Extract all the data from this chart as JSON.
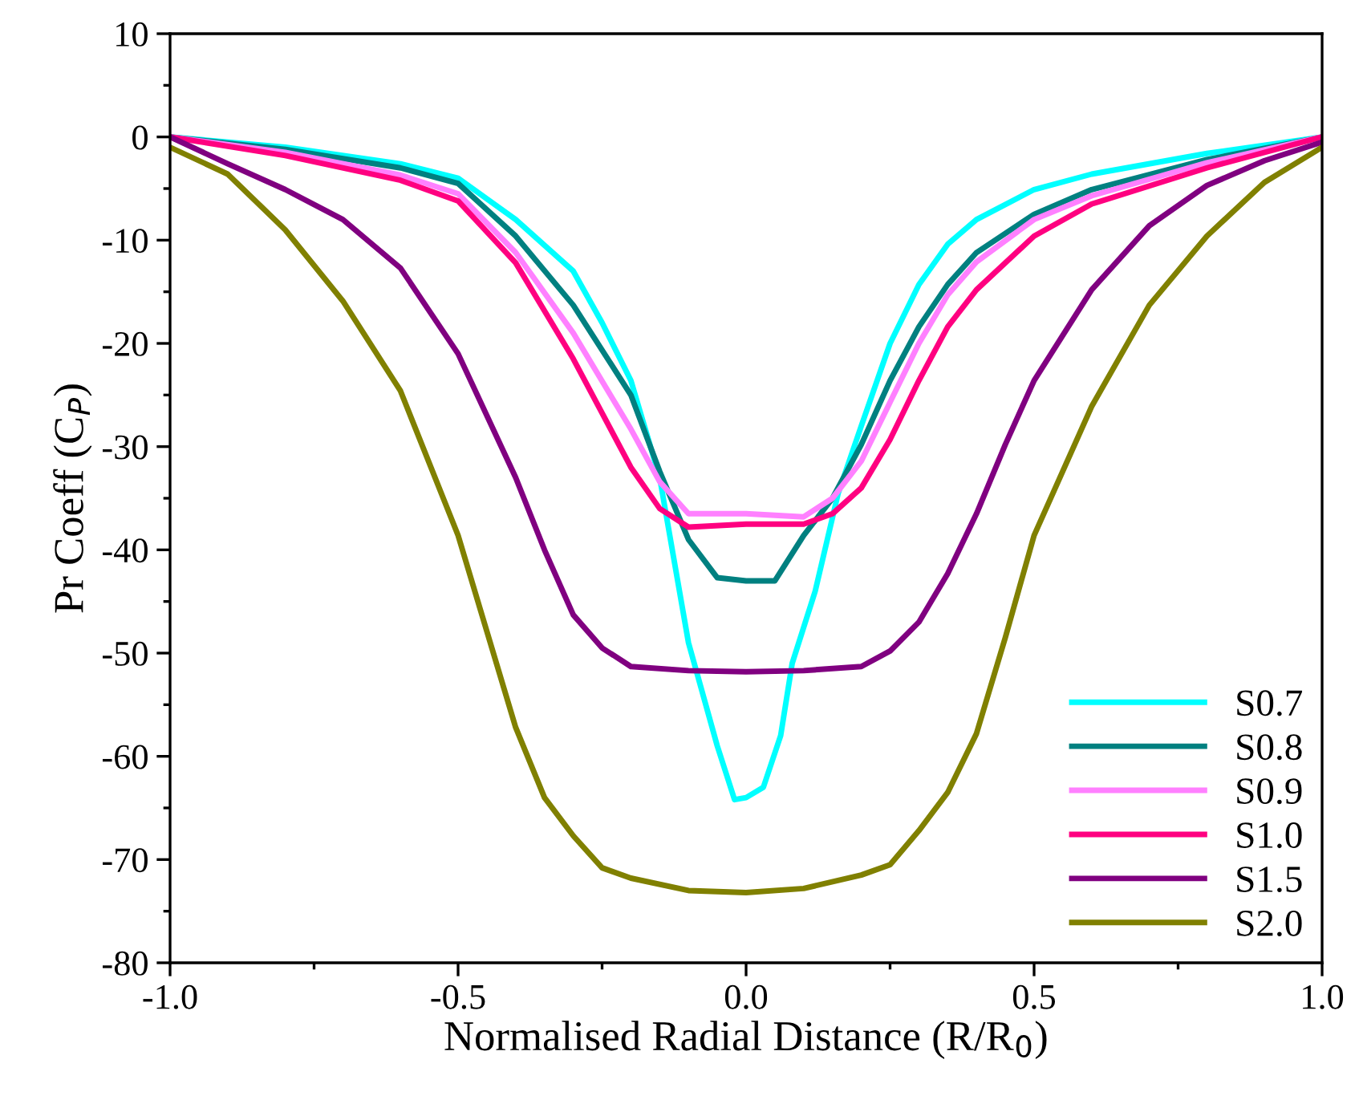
{
  "chart_data": {
    "type": "line",
    "xlabel": "Normalised Radial Distance (R/R$_{0}$)",
    "ylabel": "Pr Coeff (C$_{P}$)",
    "xlim": [
      -1,
      1
    ],
    "ylim": [
      -80,
      10
    ],
    "xticks": [
      {
        "value": -1,
        "label": "-1.0"
      },
      {
        "value": -0.75,
        "label": null
      },
      {
        "value": -0.5,
        "label": "-0.5"
      },
      {
        "value": -0.25,
        "label": null
      },
      {
        "value": 0,
        "label": "0.0"
      },
      {
        "value": 0.25,
        "label": null
      },
      {
        "value": 0.5,
        "label": "0.5"
      },
      {
        "value": 0.75,
        "label": null
      },
      {
        "value": 1,
        "label": "1.0"
      }
    ],
    "yticks": [
      -80,
      {
        "value": -75,
        "label": null
      },
      -70,
      {
        "value": -65,
        "label": null
      },
      -60,
      {
        "value": -55,
        "label": null
      },
      -50,
      {
        "value": -45,
        "label": null
      },
      -40,
      {
        "value": -35,
        "label": null
      },
      -30,
      {
        "value": -25,
        "label": null
      },
      -20,
      {
        "value": -15,
        "label": null
      },
      -10,
      {
        "value": -5,
        "label": null
      },
      0,
      {
        "value": 5,
        "label": null
      },
      10
    ],
    "grid": false,
    "legend": "bottom right",
    "line_style": "solid",
    "marker": "none",
    "series": [
      {
        "name": "S0.7",
        "color": "#00ffff",
        "x": [
          -1,
          -0.8,
          -0.6,
          -0.5,
          -0.4,
          -0.3,
          -0.25,
          -0.2,
          -0.15,
          -0.1,
          -0.05,
          -0.02,
          0,
          0.03,
          0.06,
          0.08,
          0.12,
          0.16,
          0.2,
          0.25,
          0.3,
          0.35,
          0.4,
          0.5,
          0.6,
          0.8,
          1
        ],
        "values": [
          0,
          -1,
          -2.6,
          -4,
          -8,
          -13,
          -18,
          -23.6,
          -33,
          -49,
          -59,
          -64.2,
          -64,
          -63,
          -58,
          -51,
          -44,
          -34.5,
          -28,
          -20,
          -14.3,
          -10.4,
          -8,
          -5.1,
          -3.6,
          -1.6,
          0
        ]
      },
      {
        "name": "S0.8",
        "color": "#008080",
        "x": [
          -1,
          -0.8,
          -0.6,
          -0.5,
          -0.4,
          -0.3,
          -0.2,
          -0.15,
          -0.1,
          -0.05,
          0,
          0.05,
          0.1,
          0.15,
          0.2,
          0.25,
          0.3,
          0.35,
          0.4,
          0.5,
          0.6,
          0.8,
          1
        ],
        "values": [
          0,
          -1.2,
          -3,
          -4.5,
          -9.6,
          -16.3,
          -25,
          -32.4,
          -39,
          -42.7,
          -43,
          -43,
          -38.6,
          -35,
          -29.8,
          -23.6,
          -18.4,
          -14.3,
          -11.2,
          -7.5,
          -5.1,
          -2.2,
          0
        ]
      },
      {
        "name": "S0.9",
        "color": "#ff80ff",
        "x": [
          -1,
          -0.8,
          -0.6,
          -0.5,
          -0.4,
          -0.3,
          -0.2,
          -0.15,
          -0.1,
          0,
          0.1,
          0.15,
          0.2,
          0.25,
          0.3,
          0.35,
          0.4,
          0.5,
          0.6,
          0.8,
          1
        ],
        "values": [
          0,
          -1.5,
          -3.7,
          -5.5,
          -11.2,
          -19,
          -28.3,
          -33.4,
          -36.5,
          -36.5,
          -36.8,
          -35,
          -31.4,
          -25.7,
          -20,
          -15.3,
          -12.1,
          -8,
          -5.7,
          -2.5,
          0
        ]
      },
      {
        "name": "S1.0",
        "color": "#ff0080",
        "x": [
          -1,
          -0.8,
          -0.6,
          -0.5,
          -0.4,
          -0.3,
          -0.2,
          -0.15,
          -0.1,
          0,
          0.1,
          0.15,
          0.2,
          0.25,
          0.3,
          0.35,
          0.4,
          0.5,
          0.6,
          0.8,
          1
        ],
        "values": [
          0,
          -1.8,
          -4.2,
          -6.2,
          -12.2,
          -21.5,
          -32,
          -36,
          -37.8,
          -37.5,
          -37.5,
          -36.5,
          -34,
          -29.3,
          -23.6,
          -18.4,
          -14.8,
          -9.6,
          -6.5,
          -3,
          0
        ]
      },
      {
        "name": "S1.5",
        "color": "#800080",
        "x": [
          -1,
          -0.9,
          -0.8,
          -0.7,
          -0.6,
          -0.5,
          -0.4,
          -0.35,
          -0.3,
          -0.25,
          -0.2,
          -0.1,
          0,
          0.1,
          0.2,
          0.25,
          0.3,
          0.35,
          0.4,
          0.45,
          0.5,
          0.6,
          0.7,
          0.8,
          0.9,
          1
        ],
        "values": [
          0,
          -2.6,
          -5.1,
          -8,
          -12.7,
          -21,
          -33,
          -40,
          -46.3,
          -49.5,
          -51.3,
          -51.7,
          -51.8,
          -51.7,
          -51.3,
          -49.8,
          -47,
          -42.3,
          -36.5,
          -29.8,
          -23.6,
          -14.8,
          -8.6,
          -4.7,
          -2.3,
          -0.5
        ]
      },
      {
        "name": "S2.0",
        "color": "#808000",
        "x": [
          -1,
          -0.9,
          -0.8,
          -0.7,
          -0.6,
          -0.5,
          -0.45,
          -0.4,
          -0.35,
          -0.3,
          -0.25,
          -0.2,
          -0.1,
          0,
          0.1,
          0.2,
          0.25,
          0.3,
          0.35,
          0.4,
          0.45,
          0.5,
          0.6,
          0.7,
          0.8,
          0.9,
          1
        ],
        "values": [
          -1,
          -3.6,
          -9,
          -15.9,
          -24.6,
          -38.6,
          -47.9,
          -57.2,
          -64,
          -67.7,
          -70.8,
          -71.8,
          -73,
          -73.2,
          -72.8,
          -71.5,
          -70.5,
          -67.2,
          -63.5,
          -57.8,
          -48.5,
          -38.6,
          -26.1,
          -16.3,
          -9.6,
          -4.4,
          -1
        ]
      }
    ]
  }
}
